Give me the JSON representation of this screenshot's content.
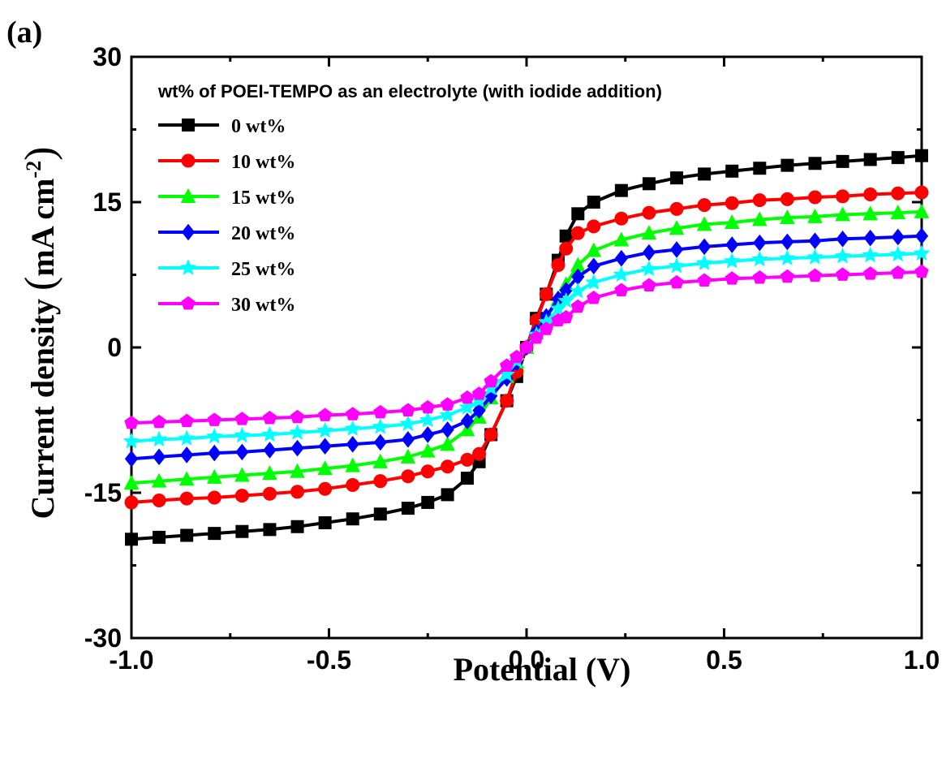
{
  "panel_label": "(a)",
  "chart_data": {
    "type": "line",
    "title": "",
    "xlabel": "Potential (V)",
    "ylabel_main": "Current density ",
    "ylabel_unit": "mA cm",
    "ylabel_exp": "-2",
    "xlim": [
      -1.0,
      1.0
    ],
    "ylim": [
      -30,
      30
    ],
    "xticks": [
      -1.0,
      -0.5,
      0.0,
      0.5,
      1.0
    ],
    "xtick_labels": [
      "-1.0",
      "-0.5",
      "0.0",
      "0.5",
      "1.0"
    ],
    "yticks": [
      -30,
      -15,
      0,
      15,
      30
    ],
    "ytick_labels": [
      "-30",
      "-15",
      "0",
      "15",
      "30"
    ],
    "grid": false,
    "legend_title": "wt% of POEI-TEMPO as an electrolyte (with iodide addition)",
    "legend_position": "top-left",
    "x": [
      -1.0,
      -0.93,
      -0.86,
      -0.79,
      -0.72,
      -0.65,
      -0.58,
      -0.51,
      -0.44,
      -0.37,
      -0.3,
      -0.25,
      -0.2,
      -0.15,
      -0.12,
      -0.09,
      -0.05,
      -0.025,
      0.0,
      0.025,
      0.05,
      0.08,
      0.1,
      0.13,
      0.17,
      0.24,
      0.31,
      0.38,
      0.45,
      0.52,
      0.59,
      0.66,
      0.73,
      0.8,
      0.87,
      0.94,
      1.0
    ],
    "series": [
      {
        "name": "0 wt%",
        "color": "#000000",
        "marker": "square",
        "values": [
          -19.8,
          -19.6,
          -19.4,
          -19.2,
          -19.0,
          -18.8,
          -18.5,
          -18.1,
          -17.7,
          -17.2,
          -16.6,
          -16.0,
          -15.2,
          -13.5,
          -11.8,
          -9.0,
          -5.5,
          -3.0,
          0.0,
          3.0,
          5.5,
          9.0,
          11.5,
          13.8,
          15.0,
          16.2,
          16.9,
          17.5,
          17.9,
          18.2,
          18.5,
          18.8,
          19.0,
          19.2,
          19.4,
          19.6,
          19.8
        ]
      },
      {
        "name": "10 wt%",
        "color": "#ff0000",
        "marker": "circle",
        "values": [
          -16.0,
          -15.8,
          -15.6,
          -15.5,
          -15.3,
          -15.1,
          -14.9,
          -14.6,
          -14.2,
          -13.8,
          -13.3,
          -12.8,
          -12.3,
          -11.6,
          -11.0,
          -9.0,
          -5.5,
          -2.5,
          0.0,
          2.8,
          5.5,
          8.5,
          10.2,
          11.8,
          12.5,
          13.3,
          13.9,
          14.3,
          14.7,
          14.9,
          15.2,
          15.3,
          15.5,
          15.6,
          15.8,
          15.9,
          16.0
        ]
      },
      {
        "name": "15 wt%",
        "color": "#00ff00",
        "marker": "triangle",
        "values": [
          -14.0,
          -13.8,
          -13.6,
          -13.4,
          -13.2,
          -13.0,
          -12.8,
          -12.5,
          -12.2,
          -11.8,
          -11.3,
          -10.7,
          -10.0,
          -8.5,
          -7.2,
          -5.2,
          -3.0,
          -1.5,
          0.0,
          1.5,
          3.0,
          5.0,
          6.5,
          8.5,
          10.0,
          11.1,
          11.8,
          12.3,
          12.7,
          12.9,
          13.2,
          13.4,
          13.5,
          13.7,
          13.8,
          13.9,
          14.0
        ]
      },
      {
        "name": "20 wt%",
        "color": "#0000ff",
        "marker": "diamond",
        "values": [
          -11.5,
          -11.3,
          -11.1,
          -10.9,
          -10.8,
          -10.6,
          -10.4,
          -10.2,
          -10.0,
          -9.8,
          -9.5,
          -9.0,
          -8.5,
          -7.6,
          -6.5,
          -5.0,
          -3.2,
          -1.6,
          0.0,
          1.6,
          3.2,
          5.0,
          5.9,
          7.3,
          8.4,
          9.2,
          9.8,
          10.1,
          10.4,
          10.6,
          10.8,
          10.9,
          11.0,
          11.2,
          11.3,
          11.4,
          11.5
        ]
      },
      {
        "name": "25 wt%",
        "color": "#00ffff",
        "marker": "star",
        "values": [
          -9.7,
          -9.5,
          -9.4,
          -9.2,
          -9.1,
          -9.0,
          -8.8,
          -8.6,
          -8.4,
          -8.2,
          -7.9,
          -7.5,
          -7.0,
          -6.2,
          -5.5,
          -4.2,
          -2.8,
          -1.4,
          0.0,
          1.3,
          2.6,
          4.0,
          4.8,
          5.8,
          6.7,
          7.5,
          8.1,
          8.4,
          8.7,
          8.9,
          9.1,
          9.2,
          9.3,
          9.4,
          9.5,
          9.6,
          9.7
        ]
      },
      {
        "name": "30 wt%",
        "color": "#ff00ff",
        "marker": "pentagon",
        "values": [
          -7.8,
          -7.7,
          -7.6,
          -7.5,
          -7.4,
          -7.3,
          -7.2,
          -7.0,
          -6.9,
          -6.7,
          -6.5,
          -6.2,
          -5.9,
          -5.2,
          -4.8,
          -3.5,
          -1.9,
          -1.0,
          0.0,
          1.0,
          1.9,
          2.8,
          3.1,
          4.2,
          5.1,
          5.9,
          6.4,
          6.7,
          6.9,
          7.1,
          7.2,
          7.3,
          7.4,
          7.5,
          7.6,
          7.7,
          7.8
        ]
      }
    ]
  }
}
